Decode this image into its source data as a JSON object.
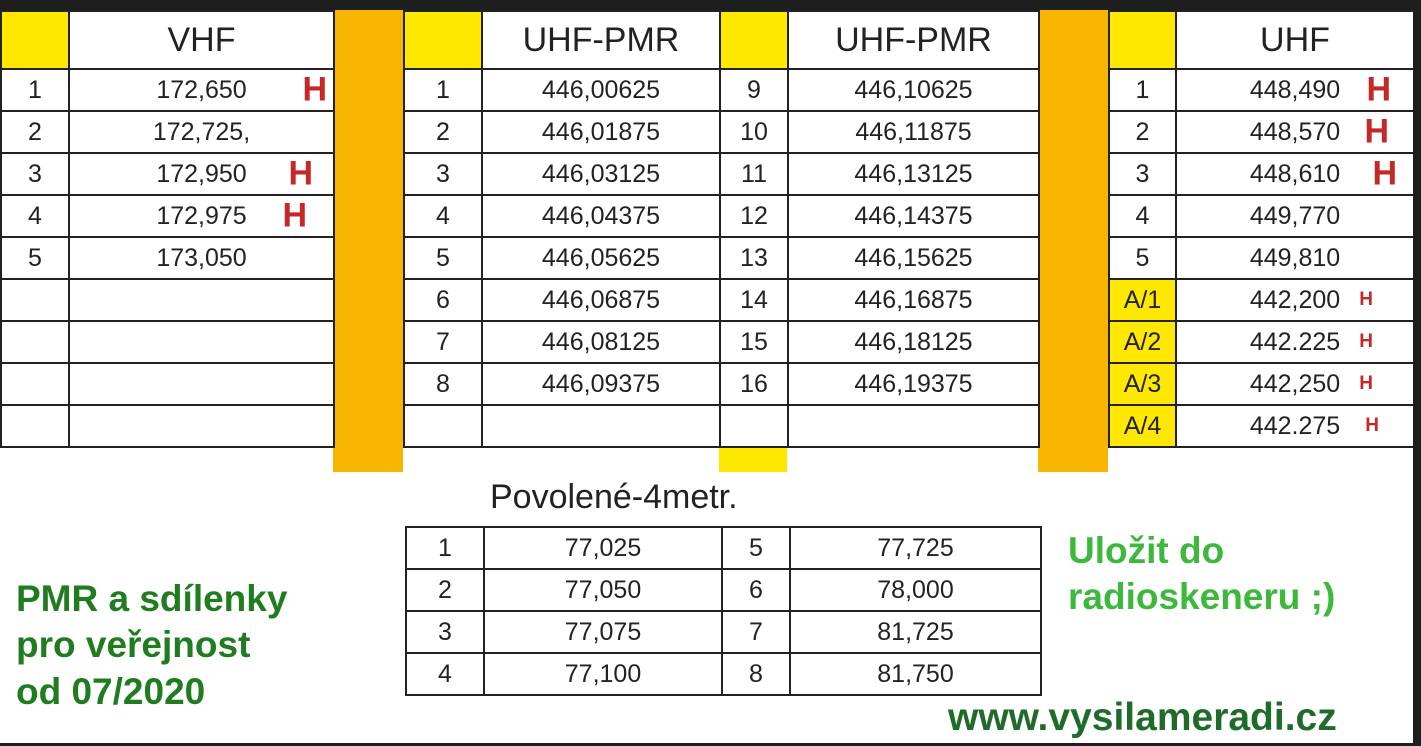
{
  "vhf": {
    "title": "VHF",
    "rows": [
      {
        "ch": "1",
        "freq": "172,650",
        "mark": "H"
      },
      {
        "ch": "2",
        "freq": "172,725,",
        "mark": ""
      },
      {
        "ch": "3",
        "freq": "172,950",
        "mark": "H"
      },
      {
        "ch": "4",
        "freq": "172,975",
        "mark": "H"
      },
      {
        "ch": "5",
        "freq": "173,050",
        "mark": ""
      }
    ]
  },
  "pmr": {
    "title_left": "UHF-PMR",
    "title_right": "UHF-PMR",
    "rows": [
      {
        "ch1": "1",
        "f1": "446,00625",
        "ch2": "9",
        "f2": "446,10625"
      },
      {
        "ch1": "2",
        "f1": "446,01875",
        "ch2": "10",
        "f2": "446,11875"
      },
      {
        "ch1": "3",
        "f1": "446,03125",
        "ch2": "11",
        "f2": "446,13125"
      },
      {
        "ch1": "4",
        "f1": "446,04375",
        "ch2": "12",
        "f2": "446,14375"
      },
      {
        "ch1": "5",
        "f1": "446,05625",
        "ch2": "13",
        "f2": "446,15625"
      },
      {
        "ch1": "6",
        "f1": "446,06875",
        "ch2": "14",
        "f2": "446,16875"
      },
      {
        "ch1": "7",
        "f1": "446,08125",
        "ch2": "15",
        "f2": "446,18125"
      },
      {
        "ch1": "8",
        "f1": "446,09375",
        "ch2": "16",
        "f2": "446,19375"
      }
    ]
  },
  "uhf": {
    "title": "UHF",
    "rows": [
      {
        "ch": "1",
        "freq": "448,490",
        "mark": "H"
      },
      {
        "ch": "2",
        "freq": "448,570",
        "mark": "H"
      },
      {
        "ch": "3",
        "freq": "448,610",
        "mark": "H"
      },
      {
        "ch": "4",
        "freq": "449,770",
        "mark": ""
      },
      {
        "ch": "5",
        "freq": "449,810",
        "mark": ""
      },
      {
        "ch": "A/1",
        "freq": "442,200",
        "mark": "H"
      },
      {
        "ch": "A/2",
        "freq": "442.225",
        "mark": "H"
      },
      {
        "ch": "A/3",
        "freq": "442,250",
        "mark": "H"
      },
      {
        "ch": "A/4",
        "freq": "442.275",
        "mark": "H"
      }
    ]
  },
  "fourm": {
    "title": "Povolené-4metr.",
    "rows": [
      {
        "ch1": "1",
        "f1": "77,025",
        "ch2": "5",
        "f2": "77,725"
      },
      {
        "ch1": "2",
        "f1": "77,050",
        "ch2": "6",
        "f2": "78,000"
      },
      {
        "ch1": "3",
        "f1": "77,075",
        "ch2": "7",
        "f2": "81,725"
      },
      {
        "ch1": "4",
        "f1": "77,100",
        "ch2": "8",
        "f2": "81,750"
      }
    ]
  },
  "notes": {
    "left_lines": [
      "PMR a sdílenky",
      "pro veřejnost",
      "od 07/2020"
    ],
    "right_lines": [
      "Uložit do",
      "radioskeneru ;)"
    ],
    "website": "www.vysilameradi.cz"
  },
  "colors": {
    "separator": "#f7b500",
    "header_cell": "#ffe800",
    "mark": "#c62828",
    "note_green": "#2eab2e",
    "website_green": "#1f6b2a"
  }
}
